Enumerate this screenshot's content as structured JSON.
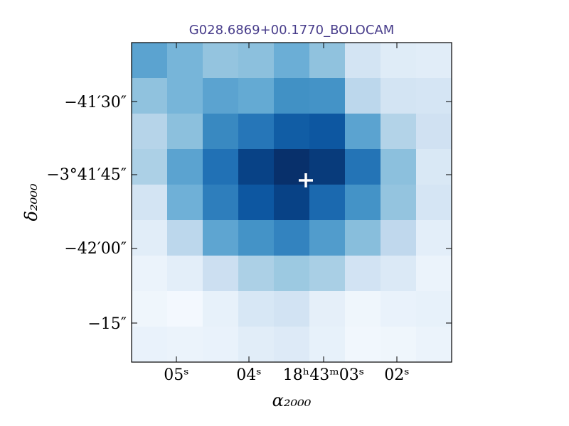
{
  "chart_data": {
    "type": "heatmap",
    "title": "G028.6869+00.1770_BOLOCAM",
    "title_color": "#483d8b",
    "colormap": "Blues",
    "xlabel": "α₂₀₀₀",
    "ylabel": "δ₂₀₀₀",
    "x_ticks": [
      "05ˢ",
      "04ˢ",
      "18ʰ43ᵐ03ˢ",
      "02ˢ"
    ],
    "y_ticks": [
      "−41′30″",
      "−3°41′45″",
      "−42′00″",
      "−15″"
    ],
    "grid": false,
    "marker": {
      "symbol": "+",
      "color": "#ffffff"
    },
    "values": [
      [
        0.55,
        0.47,
        0.4,
        0.42,
        0.5,
        0.41,
        0.18,
        0.12,
        0.11
      ],
      [
        0.41,
        0.47,
        0.55,
        0.52,
        0.63,
        0.62,
        0.28,
        0.18,
        0.17
      ],
      [
        0.3,
        0.42,
        0.66,
        0.73,
        0.83,
        0.85,
        0.55,
        0.31,
        0.2
      ],
      [
        0.33,
        0.55,
        0.75,
        0.93,
        1.0,
        0.96,
        0.74,
        0.42,
        0.15
      ],
      [
        0.18,
        0.49,
        0.7,
        0.85,
        0.93,
        0.78,
        0.62,
        0.4,
        0.17
      ],
      [
        0.11,
        0.28,
        0.54,
        0.62,
        0.68,
        0.58,
        0.43,
        0.27,
        0.1
      ],
      [
        0.06,
        0.1,
        0.22,
        0.33,
        0.38,
        0.34,
        0.19,
        0.14,
        0.06
      ],
      [
        0.04,
        0.02,
        0.08,
        0.16,
        0.19,
        0.09,
        0.04,
        0.07,
        0.08
      ],
      [
        0.07,
        0.06,
        0.07,
        0.11,
        0.13,
        0.08,
        0.03,
        0.04,
        0.06
      ]
    ]
  }
}
